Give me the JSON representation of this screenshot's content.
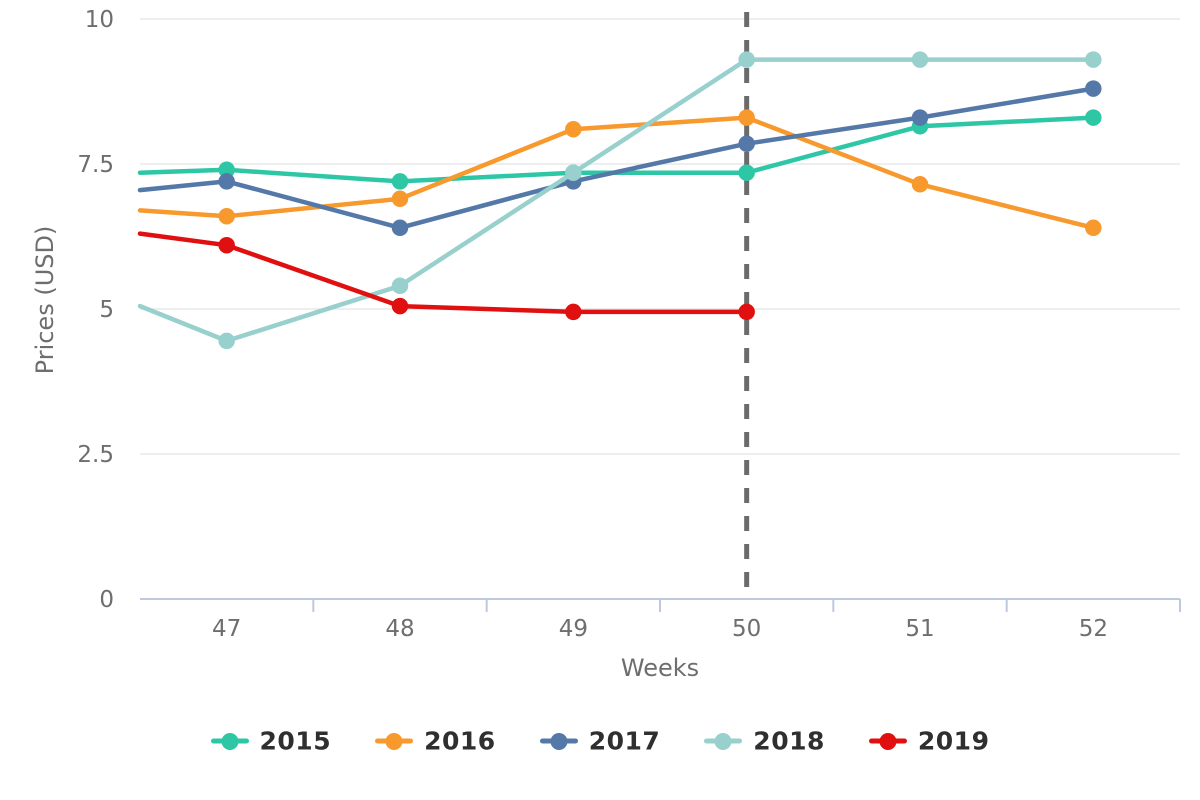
{
  "chart_data": {
    "type": "line",
    "title": "",
    "xlabel": "Weeks",
    "ylabel": "Prices (USD)",
    "x_categories": [
      47,
      48,
      49,
      50,
      51,
      52
    ],
    "ylim": [
      0,
      10
    ],
    "yticks": [
      "0",
      "2.5",
      "5",
      "7.5",
      "10"
    ],
    "grid": "horizontal",
    "legend_position": "bottom",
    "series": [
      {
        "name": "2015",
        "color": "#2EC7A6",
        "edge_value": 7.35,
        "values": [
          7.4,
          7.2,
          7.35,
          7.35,
          8.15,
          8.3
        ]
      },
      {
        "name": "2016",
        "color": "#F8992D",
        "edge_value": 6.7,
        "values": [
          6.6,
          6.9,
          8.1,
          8.3,
          7.15,
          6.4
        ]
      },
      {
        "name": "2017",
        "color": "#5478A8",
        "edge_value": 7.05,
        "values": [
          7.2,
          6.4,
          7.2,
          7.85,
          8.3,
          8.8
        ]
      },
      {
        "name": "2018",
        "color": "#97D0CC",
        "edge_value": 5.05,
        "values": [
          4.45,
          5.4,
          7.35,
          9.3,
          9.3,
          9.3
        ]
      },
      {
        "name": "2019",
        "color": "#E01010",
        "edge_value": 6.3,
        "values": [
          6.1,
          5.05,
          4.95,
          4.95,
          null,
          null
        ]
      }
    ],
    "annotations": {
      "vline_week": 50,
      "vline_style": "dashed",
      "vline_color": "#6B6B6B"
    }
  },
  "style_colors": {
    "axis_line": "#BDC9DF",
    "grid_line": "#E8E8E8",
    "axis_text": "#6E6E6E",
    "legend_text": "#2F2F2F"
  },
  "legend": {
    "items": [
      "2015",
      "2016",
      "2017",
      "2018",
      "2019"
    ]
  }
}
